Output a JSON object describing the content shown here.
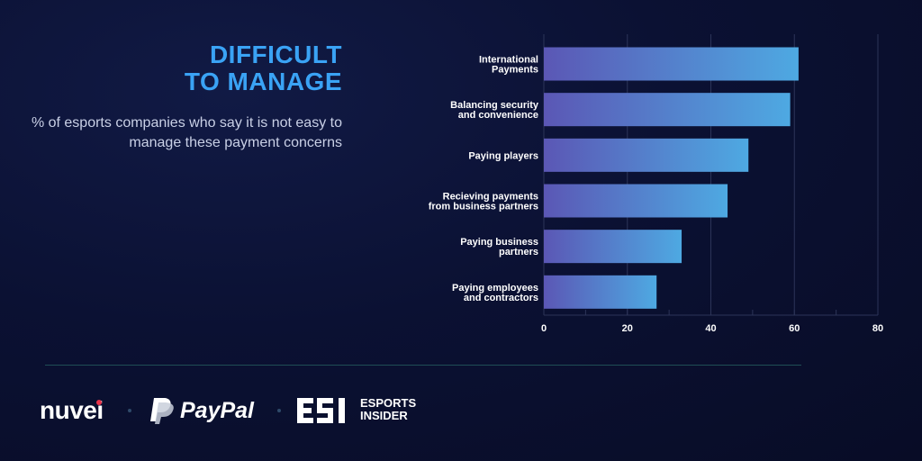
{
  "headline": {
    "line1": "DIFFICULT",
    "line2": "TO MANAGE"
  },
  "subtitle": "% of esports companies who say it is not easy to manage these payment concerns",
  "chart_data": {
    "type": "bar",
    "orientation": "horizontal",
    "categories": [
      [
        "International",
        "Payments"
      ],
      [
        "Balancing security",
        "and convenience"
      ],
      [
        "Paying players"
      ],
      [
        "Recieving payments",
        "from business partners"
      ],
      [
        "Paying business",
        "partners"
      ],
      [
        "Paying employees",
        "and contractors"
      ]
    ],
    "values": [
      61,
      59,
      49,
      44,
      33,
      27
    ],
    "xlim": [
      0,
      80
    ],
    "xticks": [
      0,
      20,
      40,
      60,
      80
    ],
    "grid": true,
    "colors": {
      "bar_start": "#5b57b5",
      "bar_end": "#4ea9e2",
      "grid": "#2c3458"
    }
  },
  "footer": {
    "nuvei": "nuvei",
    "paypal": "PayPal",
    "esi_line1": "ESPORTS",
    "esi_line2": "INSIDER"
  }
}
